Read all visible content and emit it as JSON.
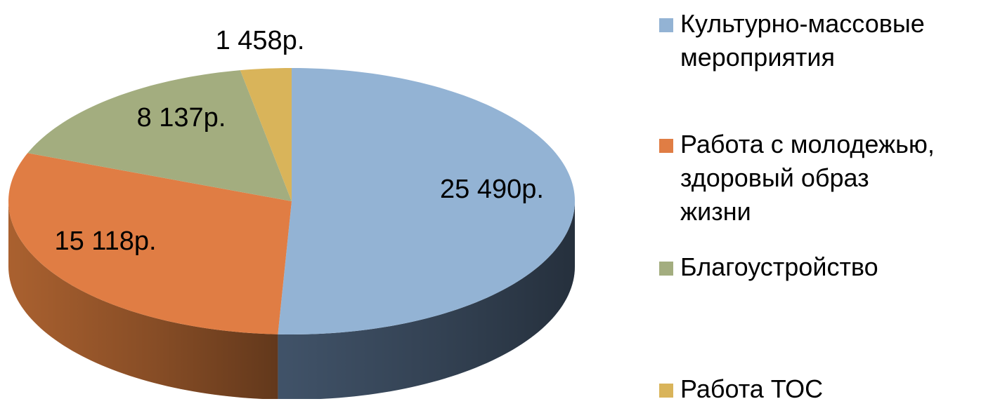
{
  "chart_data": {
    "type": "pie",
    "style": "3d",
    "categories": [
      "Культурно-массовые мероприятия",
      "Работа с молодежью, здоровый образ жизни",
      "Благоустройство",
      "Работа ТОС"
    ],
    "values": [
      25490,
      15118,
      8137,
      1458
    ],
    "value_labels": [
      "25 490р.",
      "15 118р.",
      "8 137р.",
      "1 458р."
    ],
    "colors": [
      "#93b3d4",
      "#e07d44",
      "#a3ad7f",
      "#d9b45a"
    ],
    "side_colors": [
      "#44576e",
      "#b36632",
      "#7b8259",
      "#a68538"
    ],
    "legend_placement": "right"
  },
  "legend": {
    "items": [
      {
        "label": "Культурно-массовые\nмероприятия",
        "color": "#93b3d4"
      },
      {
        "label": "Работа с молодежью,\nздоровый образ\nжизни",
        "color": "#e07d44"
      },
      {
        "label": "Благоустройство",
        "color": "#a3ad7f"
      },
      {
        "label": "Работа ТОС",
        "color": "#d9b45a"
      }
    ]
  }
}
